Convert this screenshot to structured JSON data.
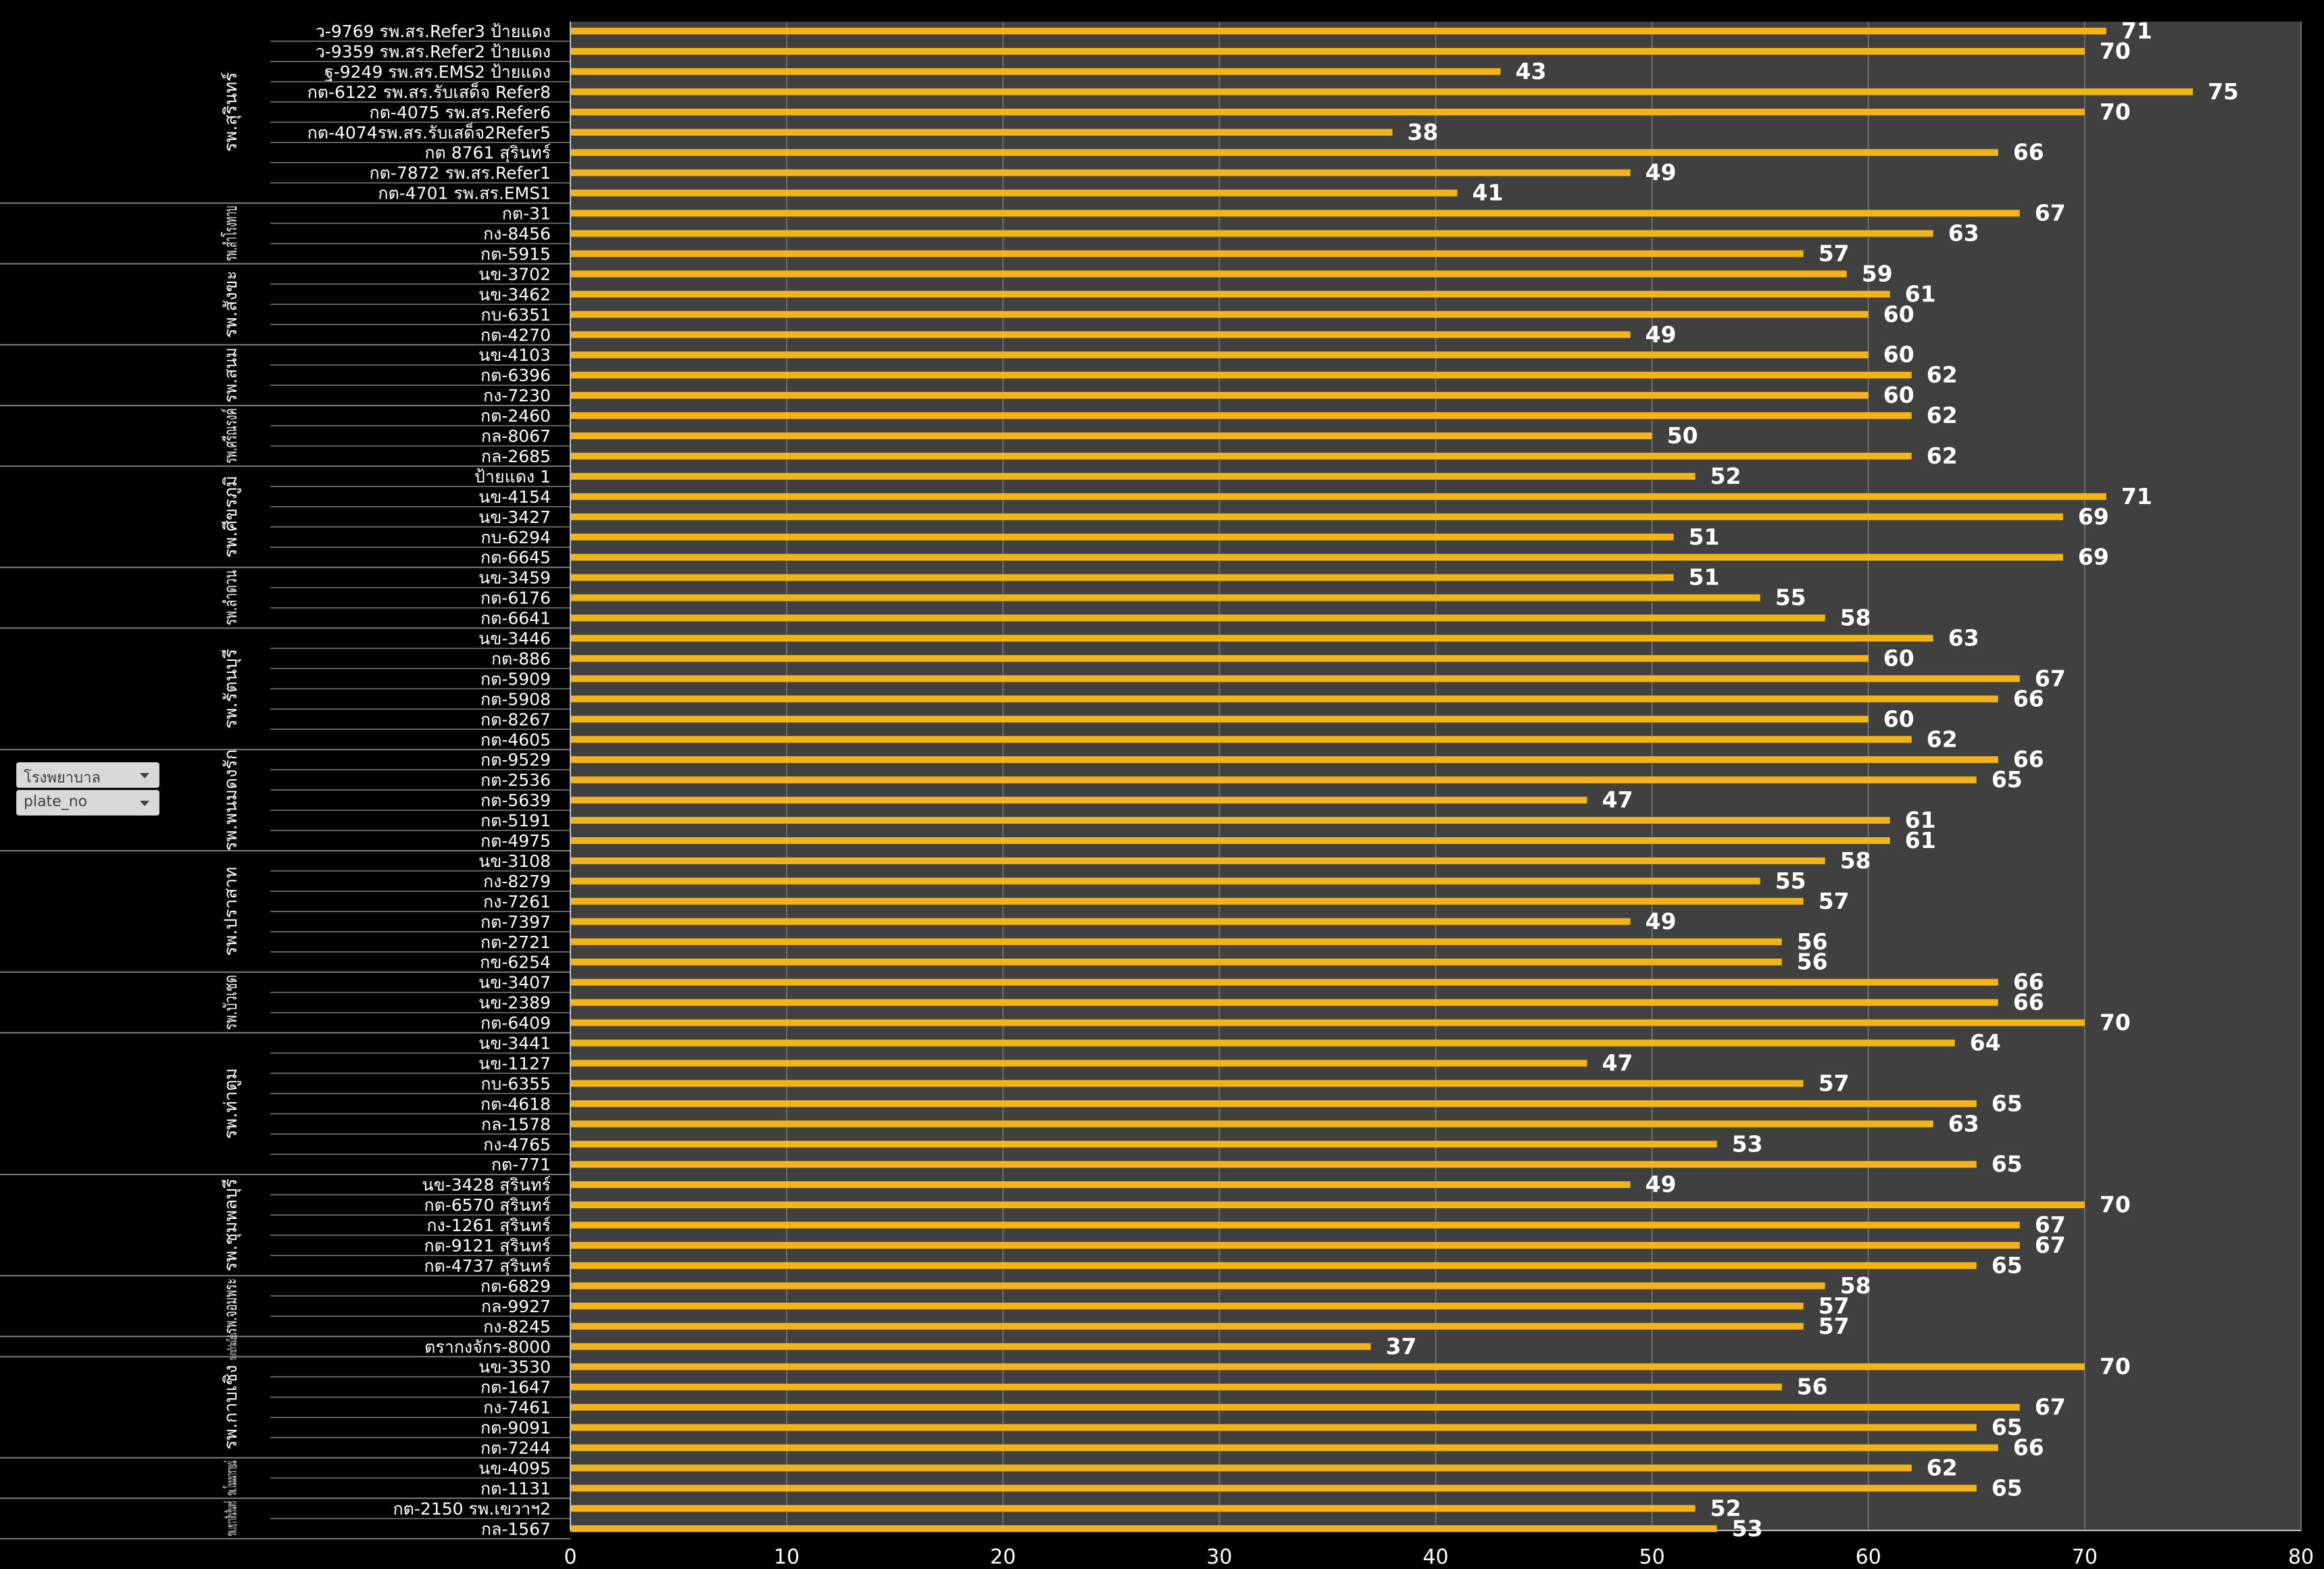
{
  "filters": {
    "hospital_label": "โรงพยาบาล",
    "plate_label": "plate_no"
  },
  "colors": {
    "bar": "#f2b416",
    "plot_bg": "#404040",
    "page_bg": "#000000",
    "text": "#ffffff"
  },
  "chart_data": {
    "type": "bar",
    "orientation": "horizontal",
    "xlim": [
      0,
      80
    ],
    "x_ticks": [
      0,
      10,
      20,
      30,
      40,
      50,
      60,
      70,
      80
    ],
    "grid": true,
    "groups": [
      {
        "name": "รพ.สุรินทร์",
        "items": [
          [
            "ว-9769 รพ.สร.Refer3 ป้ายแดง",
            71
          ],
          [
            "ว-9359 รพ.สร.Refer2 ป้ายแดง",
            70
          ],
          [
            "ฐ-9249 รพ.สร.EMS2 ป้ายแดง",
            43
          ],
          [
            "กต-6122 รพ.สร.รับเสด็จ Refer8",
            75
          ],
          [
            "กต-4075 รพ.สร.Refer6",
            70
          ],
          [
            "กต-4074รพ.สร.รับเสด็จ2Refer5",
            38
          ],
          [
            "กต 8761 สุรินทร์",
            66
          ],
          [
            "กต-7872 รพ.สร.Refer1",
            49
          ],
          [
            "กต-4701 รพ.สร.EMS1",
            41
          ]
        ]
      },
      {
        "name": "รพ.สำโรงทาบ",
        "items": [
          [
            "กต-31",
            67
          ],
          [
            "กง-8456",
            63
          ],
          [
            "กต-5915",
            57
          ]
        ]
      },
      {
        "name": "รพ.สังขะ",
        "items": [
          [
            "นข-3702",
            59
          ],
          [
            "นข-3462",
            61
          ],
          [
            "กบ-6351",
            60
          ],
          [
            "กต-4270",
            49
          ]
        ]
      },
      {
        "name": "รพ.สนม",
        "items": [
          [
            "นข-4103",
            60
          ],
          [
            "กต-6396",
            62
          ],
          [
            "กง-7230",
            60
          ]
        ]
      },
      {
        "name": "รพ.ศรีณรงค์",
        "items": [
          [
            "กต-2460",
            62
          ],
          [
            "กล-8067",
            50
          ],
          [
            "กล-2685",
            62
          ]
        ]
      },
      {
        "name": "รพ.ศีขรภูมิ",
        "items": [
          [
            "ป้ายแดง 1",
            52
          ],
          [
            "นข-4154",
            71
          ],
          [
            "นข-3427",
            69
          ],
          [
            "กบ-6294",
            51
          ],
          [
            "กต-6645",
            69
          ]
        ]
      },
      {
        "name": "รพ.ลำดวน",
        "items": [
          [
            "นข-3459",
            51
          ],
          [
            "กต-6176",
            55
          ],
          [
            "กต-6641",
            58
          ]
        ]
      },
      {
        "name": "รพ.รัตนบุรี",
        "items": [
          [
            "นข-3446",
            63
          ],
          [
            "กต-886",
            60
          ],
          [
            "กต-5909",
            67
          ],
          [
            "กต-5908",
            66
          ],
          [
            "กต-8267",
            60
          ],
          [
            "กต-4605",
            62
          ]
        ]
      },
      {
        "name": "รพ.พนมดงรัก",
        "items": [
          [
            "กต-9529",
            66
          ],
          [
            "กต-2536",
            65
          ],
          [
            "กต-5639",
            47
          ],
          [
            "กต-5191",
            61
          ],
          [
            "กต-4975",
            61
          ]
        ]
      },
      {
        "name": "รพ.ปราสาท",
        "items": [
          [
            "นข-3108",
            58
          ],
          [
            "กง-8279",
            55
          ],
          [
            "กง-7261",
            57
          ],
          [
            "กต-7397",
            49
          ],
          [
            "กต-2721",
            56
          ],
          [
            "กข-6254",
            56
          ]
        ]
      },
      {
        "name": "รพ.บัวเชด",
        "items": [
          [
            "นข-3407",
            66
          ],
          [
            "นข-2389",
            66
          ],
          [
            "กต-6409",
            70
          ]
        ]
      },
      {
        "name": "รพ.ท่าตูม",
        "items": [
          [
            "นข-3441",
            64
          ],
          [
            "นข-1127",
            47
          ],
          [
            "กบ-6355",
            57
          ],
          [
            "กต-4618",
            65
          ],
          [
            "กล-1578",
            63
          ],
          [
            "กง-4765",
            53
          ],
          [
            "กต-771",
            65
          ]
        ]
      },
      {
        "name": "รพ.ชุมพลบุรี",
        "items": [
          [
            "นข-3428 สุรินทร์",
            49
          ],
          [
            "กต-6570 สุรินทร์",
            70
          ],
          [
            "กง-1261 สุรินทร์",
            67
          ],
          [
            "กต-9121 สุรินทร์",
            67
          ],
          [
            "กต-4737 สุรินทร์",
            65
          ]
        ]
      },
      {
        "name": "รพ.จอมพระ",
        "items": [
          [
            "กต-6829",
            58
          ],
          [
            "กล-9927",
            57
          ],
          [
            "กง-8245",
            57
          ]
        ]
      },
      {
        "name": "รพ.ค่ายวีรวัฒน์โยธิน",
        "items": [
          [
            "ตรากงจักร-8000",
            37
          ]
        ]
      },
      {
        "name": "รพ.กาบเชิง",
        "items": [
          [
            "นข-3530",
            70
          ],
          [
            "กต-1647",
            56
          ],
          [
            "กง-7461",
            67
          ],
          [
            "กต-9091",
            65
          ],
          [
            "กต-7244",
            66
          ]
        ]
      },
      {
        "name": "รพ.โนนนารายณ์",
        "items": [
          [
            "นข-4095",
            62
          ],
          [
            "กต-1131",
            65
          ]
        ]
      },
      {
        "name": "รพ.เขวาสินรินทร์",
        "items": [
          [
            "กต-2150 รพ.เขวาฯ2",
            52
          ],
          [
            "กล-1567",
            53
          ]
        ]
      }
    ]
  }
}
